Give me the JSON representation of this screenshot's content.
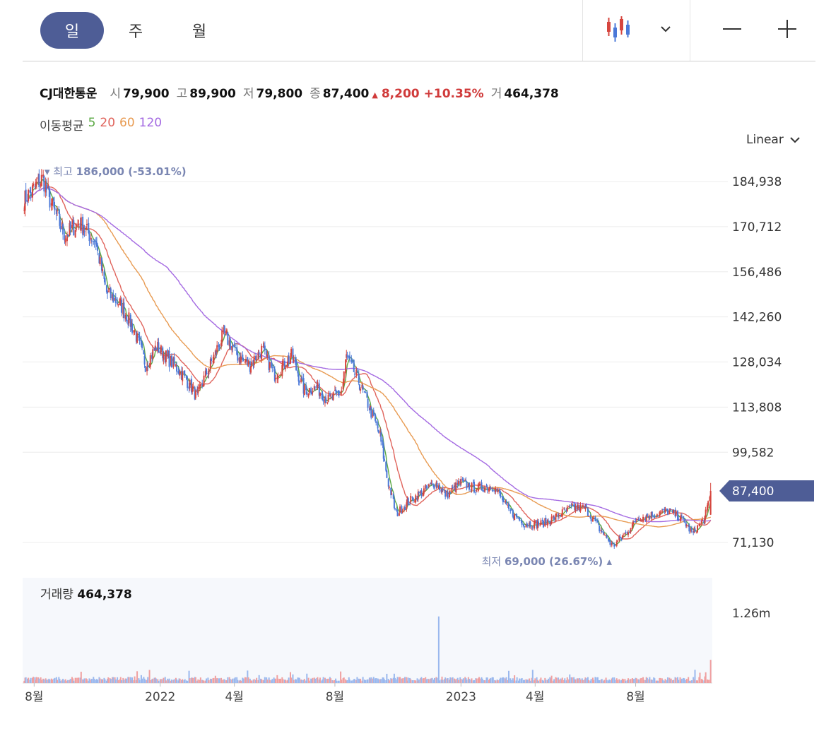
{
  "toolbar": {
    "tabs": [
      {
        "label": "일",
        "active": true
      },
      {
        "label": "주",
        "active": false
      },
      {
        "label": "월",
        "active": false
      }
    ],
    "chart_type_icon": "candlestick-icon",
    "dropdown_icon": "chevron-down-icon",
    "zoom_out_icon": "minus-icon",
    "zoom_in_icon": "plus-icon"
  },
  "info": {
    "name": "CJ대한통운",
    "open_label": "시",
    "open": "79,900",
    "high_label": "고",
    "high": "89,900",
    "low_label": "저",
    "low": "79,800",
    "close_label": "종",
    "close": "87,400",
    "change": "8,200",
    "change_pct": "+10.35%",
    "volume_label": "거",
    "volume": "464,378"
  },
  "ma": {
    "label": "이동평균",
    "periods": [
      "5",
      "20",
      "60",
      "120"
    ],
    "colors": [
      "#5aa843",
      "#e0645c",
      "#e89b52",
      "#a46ae2"
    ]
  },
  "scale_label": "Linear",
  "colors": {
    "up": "#d6453e",
    "down": "#4a78d8",
    "accent": "#4e5d96",
    "max_label": "#7a86b2",
    "volume_up": "#f0a0a0",
    "volume_down": "#9ab8ee"
  },
  "chart_data": [
    {
      "type": "candlestick",
      "title": "CJ대한통운",
      "y_ticks": [
        "184,938",
        "170,712",
        "156,486",
        "142,260",
        "128,034",
        "113,808",
        "99,582",
        "71,130"
      ],
      "ylim": [
        65000,
        190000
      ],
      "x_ticks": [
        "8월",
        "2022",
        "4월",
        "8월",
        "2023",
        "4월",
        "8월"
      ],
      "x_range": [
        "2021-07",
        "2023-11"
      ],
      "last_price_label": "87,400",
      "max_annotation": {
        "label": "최고",
        "value": "186,000",
        "pct": "(-53.01%)"
      },
      "min_annotation": {
        "label": "최저",
        "value": "69,000",
        "pct": "(26.67%)"
      },
      "price_path": [
        [
          "2021-07-20",
          179000
        ],
        [
          "2021-08-05",
          184000
        ],
        [
          "2021-08-12",
          186000
        ],
        [
          "2021-08-25",
          176000
        ],
        [
          "2021-09-08",
          168000
        ],
        [
          "2021-09-25",
          172000
        ],
        [
          "2021-10-15",
          166000
        ],
        [
          "2021-10-28",
          150000
        ],
        [
          "2021-11-15",
          146000
        ],
        [
          "2021-12-01",
          138000
        ],
        [
          "2021-12-15",
          127000
        ],
        [
          "2021-12-28",
          133000
        ],
        [
          "2022-01-15",
          128000
        ],
        [
          "2022-02-01",
          123000
        ],
        [
          "2022-02-15",
          117000
        ],
        [
          "2022-03-01",
          126000
        ],
        [
          "2022-03-20",
          137000
        ],
        [
          "2022-04-05",
          130000
        ],
        [
          "2022-04-20",
          127000
        ],
        [
          "2022-05-05",
          132000
        ],
        [
          "2022-05-20",
          124000
        ],
        [
          "2022-06-10",
          130000
        ],
        [
          "2022-06-25",
          119000
        ],
        [
          "2022-07-10",
          120000
        ],
        [
          "2022-07-25",
          116000
        ],
        [
          "2022-08-10",
          119000
        ],
        [
          "2022-08-15",
          130000
        ],
        [
          "2022-08-30",
          122000
        ],
        [
          "2022-09-15",
          112000
        ],
        [
          "2022-09-25",
          105000
        ],
        [
          "2022-10-05",
          90000
        ],
        [
          "2022-10-15",
          80000
        ],
        [
          "2022-10-30",
          84000
        ],
        [
          "2022-11-15",
          87000
        ],
        [
          "2022-12-01",
          90000
        ],
        [
          "2022-12-15",
          86000
        ],
        [
          "2023-01-01",
          90000
        ],
        [
          "2023-01-20",
          88000
        ],
        [
          "2023-02-10",
          89000
        ],
        [
          "2023-03-01",
          81000
        ],
        [
          "2023-03-20",
          77000
        ],
        [
          "2023-04-10",
          77000
        ],
        [
          "2023-04-25",
          79000
        ],
        [
          "2023-05-15",
          82000
        ],
        [
          "2023-06-01",
          82000
        ],
        [
          "2023-06-20",
          75000
        ],
        [
          "2023-07-05",
          70000
        ],
        [
          "2023-07-20",
          74000
        ],
        [
          "2023-08-05",
          79000
        ],
        [
          "2023-08-25",
          80000
        ],
        [
          "2023-09-10",
          81000
        ],
        [
          "2023-09-25",
          79000
        ],
        [
          "2023-10-10",
          74000
        ],
        [
          "2023-10-25",
          79000
        ],
        [
          "2023-11-01",
          87400
        ]
      ],
      "volume": {
        "label": "거래량",
        "last": "464,378",
        "axis_tick": "1.26m",
        "max": 1260000,
        "spike": [
          "2022-12-05",
          1200000
        ]
      }
    }
  ]
}
